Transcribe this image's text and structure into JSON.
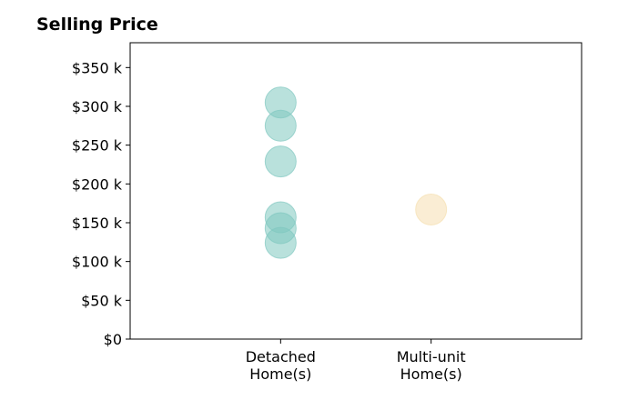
{
  "chart_data": {
    "type": "scatter",
    "title": "Selling Price",
    "xlabel": "",
    "ylabel": "",
    "categories": [
      [
        "Detached",
        "Home(s)"
      ],
      [
        "Multi-unit",
        "Home(s)"
      ]
    ],
    "y_ticks": [
      {
        "value": 0,
        "label": "$0"
      },
      {
        "value": 50000,
        "label": "$50 k"
      },
      {
        "value": 100000,
        "label": "$100 k"
      },
      {
        "value": 150000,
        "label": "$150 k"
      },
      {
        "value": 200000,
        "label": "$200 k"
      },
      {
        "value": 250000,
        "label": "$250 k"
      },
      {
        "value": 300000,
        "label": "$300 k"
      },
      {
        "value": 350000,
        "label": "$350 k"
      }
    ],
    "ylim": [
      0,
      382000
    ],
    "xlim": [
      -1,
      2
    ],
    "grid": false,
    "legend": "none",
    "series": [
      {
        "category_index": 0,
        "color": "#80c8c0",
        "values": [
          305000,
          275000,
          229000,
          157000,
          143000,
          124000
        ]
      },
      {
        "category_index": 1,
        "color": "#f5dfb0",
        "values": [
          167000
        ]
      }
    ]
  }
}
